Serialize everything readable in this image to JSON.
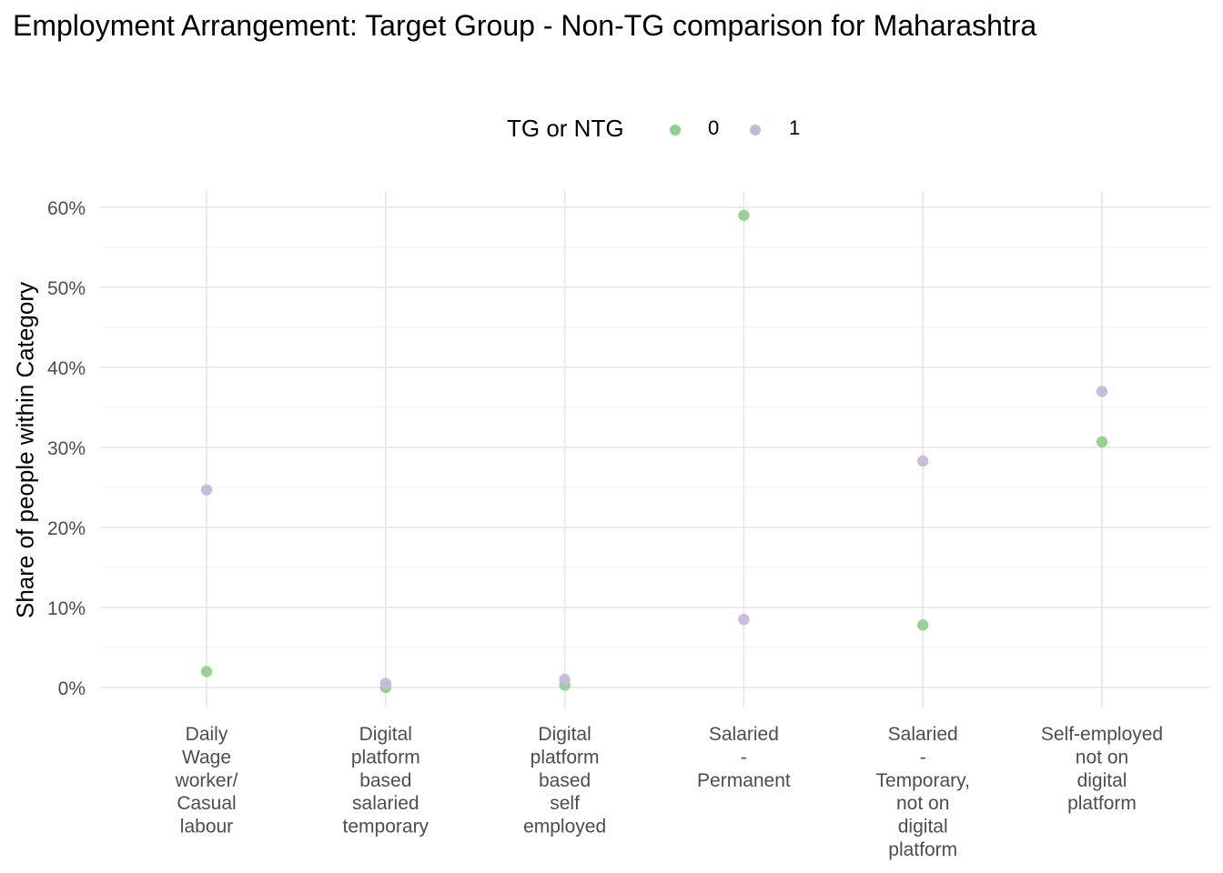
{
  "chart_data": {
    "type": "scatter",
    "title": "Employment Arrangement: Target Group - Non-TG comparison for Maharashtra",
    "xlabel": "",
    "ylabel": "Share of people within Category",
    "categories": [
      [
        "Daily",
        "Wage",
        "worker/",
        "Casual",
        "labour"
      ],
      [
        "Digital",
        "platform",
        "based",
        "salaried",
        "temporary"
      ],
      [
        "Digital",
        "platform",
        "based",
        "self",
        "employed"
      ],
      [
        "Salaried",
        "-",
        "Permanent"
      ],
      [
        "Salaried",
        "-",
        "Temporary,",
        "not on",
        "digital",
        "platform"
      ],
      [
        "Self-employed",
        "not on",
        "digital",
        "platform"
      ]
    ],
    "ylim": [
      0,
      60
    ],
    "yticks": [
      0,
      10,
      20,
      30,
      40,
      50,
      60
    ],
    "ytick_labels": [
      "0%",
      "10%",
      "20%",
      "30%",
      "40%",
      "50%",
      "60%"
    ],
    "legend": {
      "title": "TG or NTG",
      "position": "top"
    },
    "grid": true,
    "series": [
      {
        "name": "0",
        "color": "#8fd08f",
        "values": [
          2.0,
          0.0,
          0.3,
          59.0,
          7.8,
          30.7
        ]
      },
      {
        "name": "1",
        "color": "#c6b8dd",
        "values": [
          24.7,
          0.5,
          1.0,
          8.5,
          28.3,
          37.0
        ]
      }
    ]
  }
}
